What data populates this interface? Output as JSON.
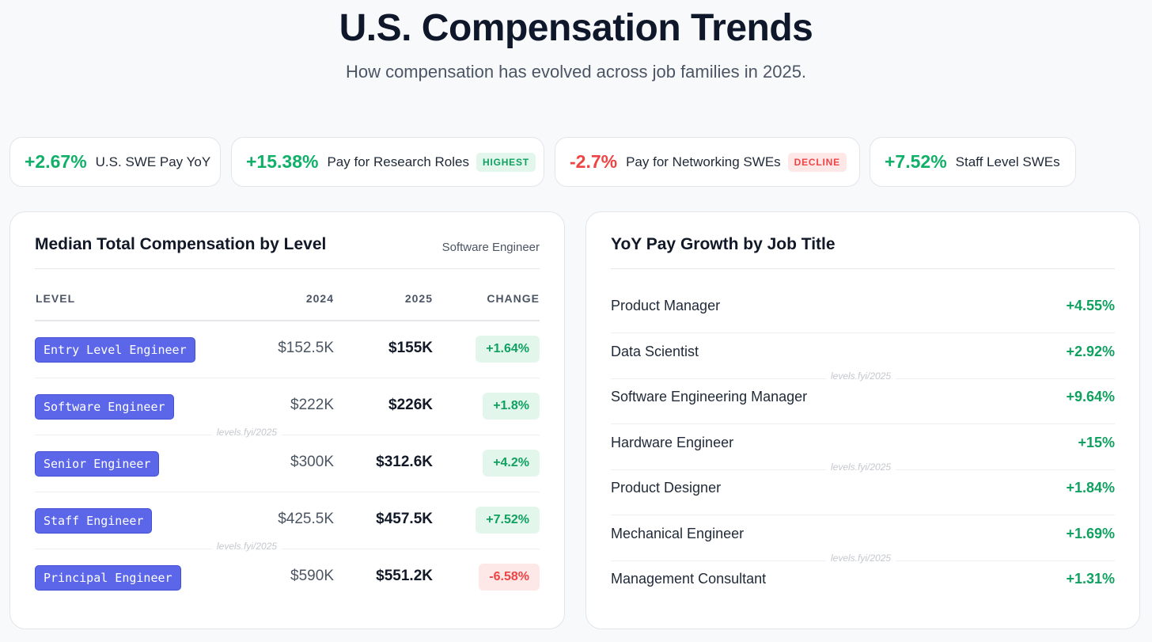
{
  "header": {
    "title": "U.S. Compensation Trends",
    "subtitle": "How compensation has evolved across job families in 2025."
  },
  "stats": [
    {
      "value": "+2.67%",
      "label": "U.S. SWE Pay YoY",
      "badge": "",
      "tone": "positive"
    },
    {
      "value": "+15.38%",
      "label": "Pay for Research Roles",
      "badge": "HIGHEST",
      "tone": "positive"
    },
    {
      "value": "-2.7%",
      "label": "Pay for Networking SWEs",
      "badge": "DECLINE",
      "tone": "negative"
    },
    {
      "value": "+7.52%",
      "label": "Staff Level SWEs",
      "badge": "",
      "tone": "positive"
    }
  ],
  "median_panel": {
    "title": "Median Total Compensation by Level",
    "subtitle": "Software Engineer",
    "columns": [
      "LEVEL",
      "2024",
      "2025",
      "CHANGE"
    ],
    "rows": [
      {
        "level": "Entry Level Engineer",
        "y2024": "$152.5K",
        "y2025": "$155K",
        "change": "+1.64%"
      },
      {
        "level": "Software Engineer",
        "y2024": "$222K",
        "y2025": "$226K",
        "change": "+1.8%"
      },
      {
        "level": "Senior Engineer",
        "y2024": "$300K",
        "y2025": "$312.6K",
        "change": "+4.2%"
      },
      {
        "level": "Staff Engineer",
        "y2024": "$425.5K",
        "y2025": "$457.5K",
        "change": "+7.52%"
      },
      {
        "level": "Principal Engineer",
        "y2024": "$590K",
        "y2025": "$551.2K",
        "change": "-6.58%"
      }
    ]
  },
  "growth_panel": {
    "title": "YoY Pay Growth by Job Title",
    "rows": [
      {
        "title": "Product Manager",
        "growth": "+4.55%"
      },
      {
        "title": "Data Scientist",
        "growth": "+2.92%"
      },
      {
        "title": "Software Engineering Manager",
        "growth": "+9.64%"
      },
      {
        "title": "Hardware Engineer",
        "growth": "+15%"
      },
      {
        "title": "Product Designer",
        "growth": "+1.84%"
      },
      {
        "title": "Mechanical Engineer",
        "growth": "+1.69%"
      },
      {
        "title": "Management Consultant",
        "growth": "+1.31%"
      }
    ]
  },
  "watermark": "levels.fyi/2025",
  "colors": {
    "positive": "#10a060",
    "negative": "#ef4444",
    "level_chip": "#5b67e8"
  }
}
